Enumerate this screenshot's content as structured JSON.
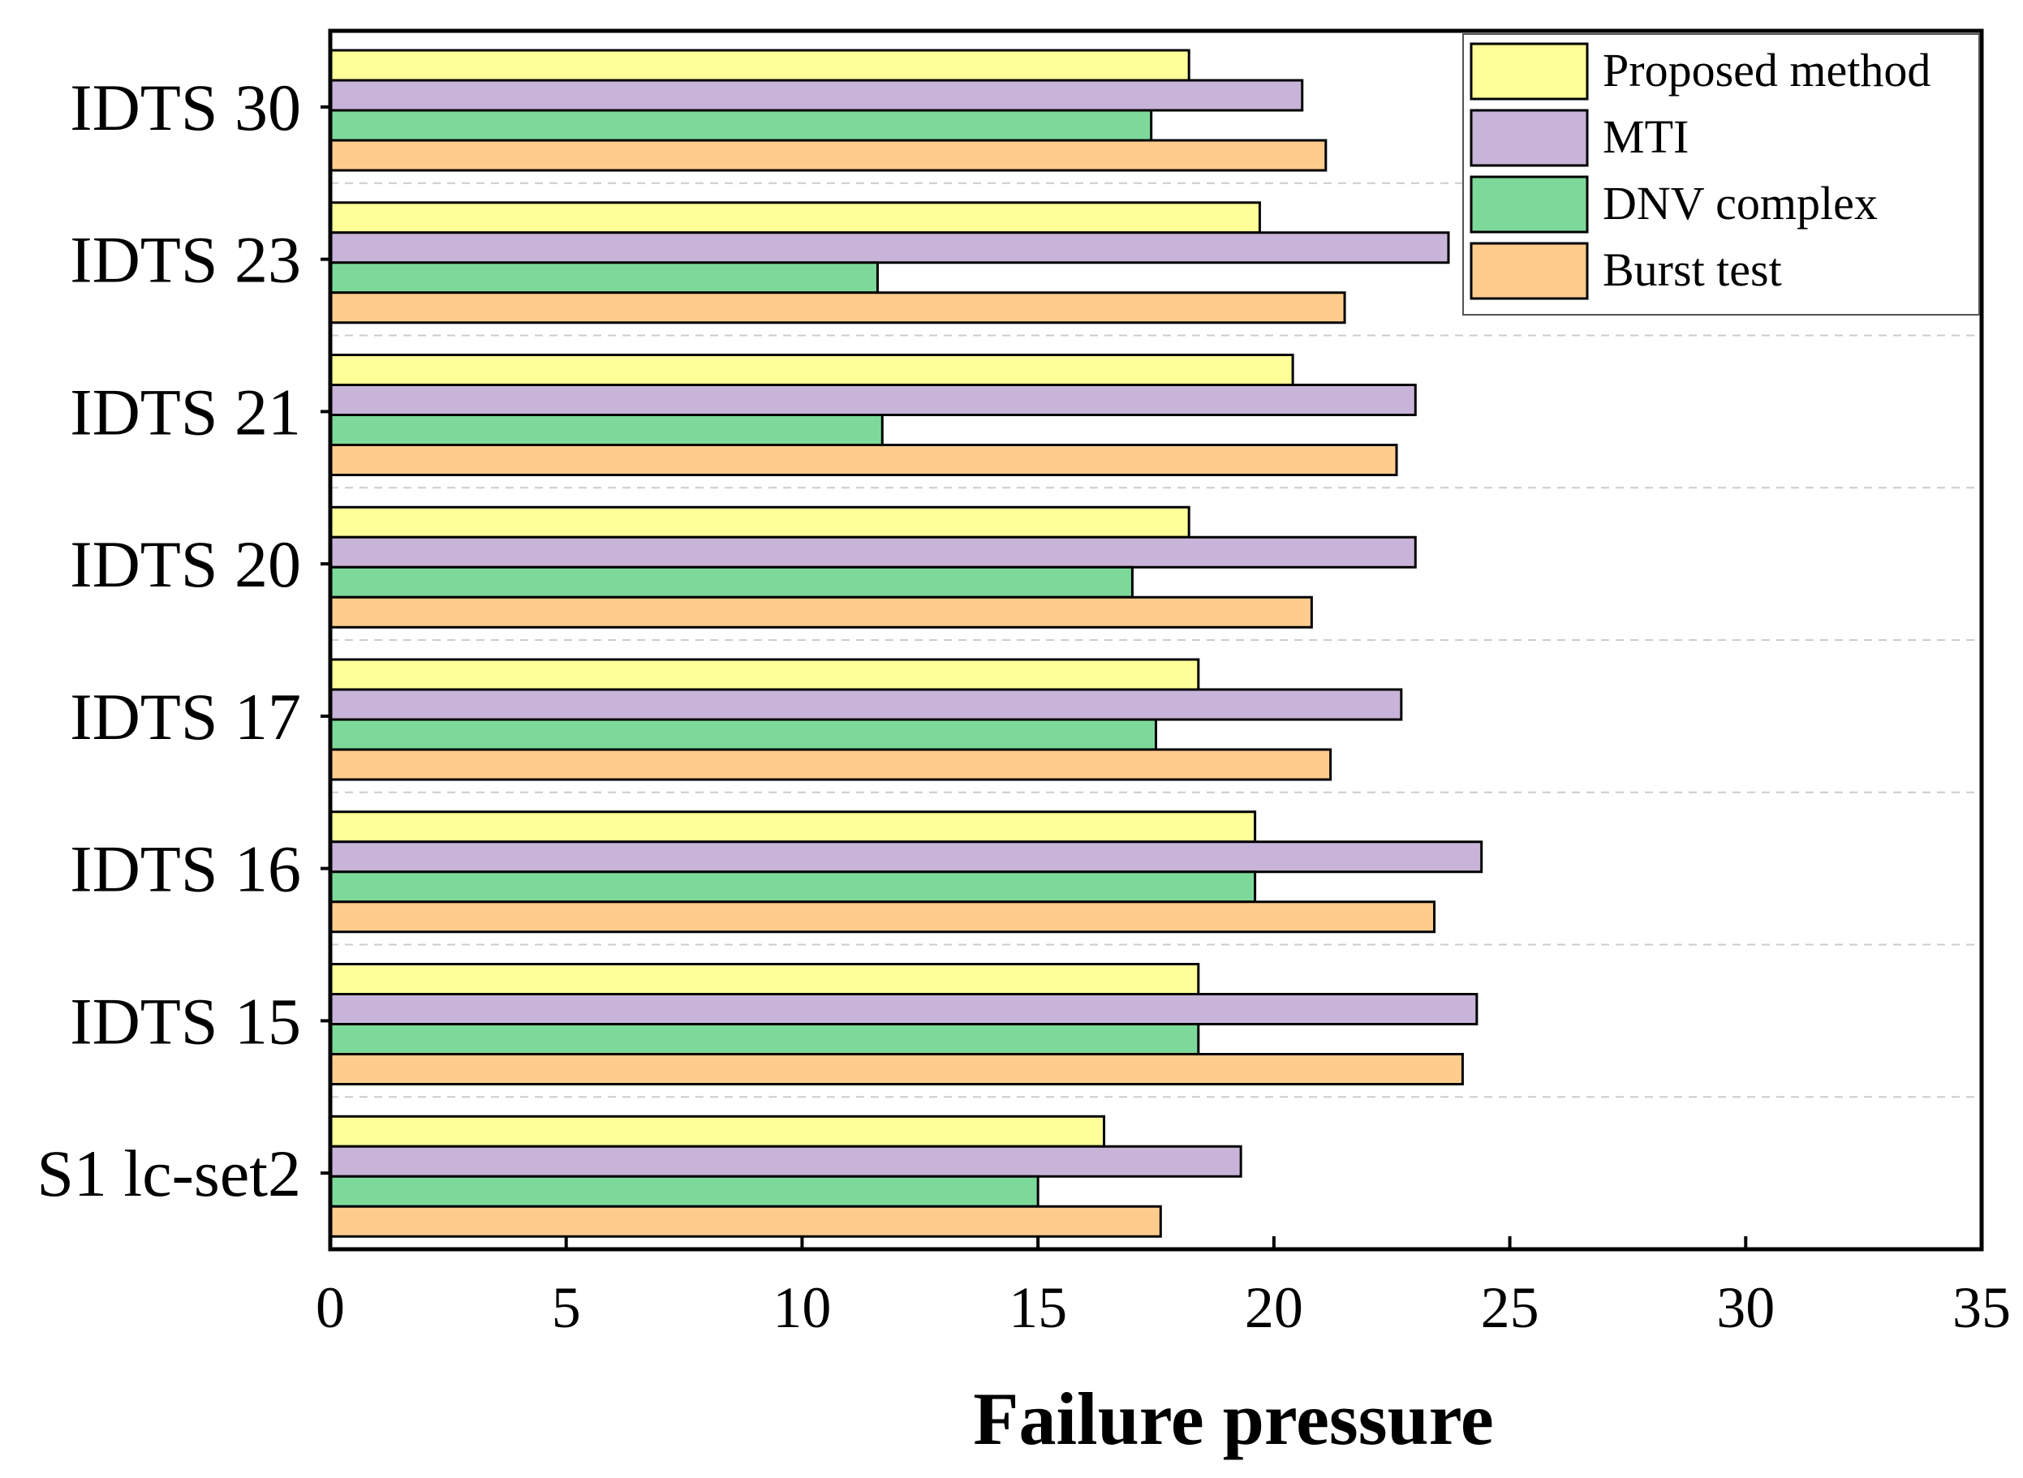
{
  "chart_data": {
    "type": "bar",
    "orientation": "horizontal",
    "categories": [
      "IDTS 30",
      "IDTS 23",
      "IDTS 21",
      "IDTS 20",
      "IDTS 17",
      "IDTS 16",
      "IDTS 15",
      "S1 lc-set2"
    ],
    "series": [
      {
        "name": "Proposed method",
        "color": "#FFFF99",
        "values": [
          18.2,
          19.7,
          20.4,
          18.2,
          18.4,
          19.6,
          18.4,
          16.4
        ]
      },
      {
        "name": "MTI",
        "color": "#C8B4D8",
        "values": [
          20.6,
          23.7,
          23.0,
          23.0,
          22.7,
          24.4,
          24.3,
          19.3
        ]
      },
      {
        "name": "DNV complex",
        "color": "#7DD99A",
        "values": [
          17.4,
          11.6,
          11.7,
          17.0,
          17.5,
          19.6,
          18.4,
          15.0
        ]
      },
      {
        "name": "Burst test",
        "color": "#FFCC8E",
        "values": [
          21.1,
          21.5,
          22.6,
          20.8,
          21.2,
          23.4,
          24.0,
          17.6
        ]
      }
    ],
    "xlabel": "Failure pressure",
    "ylabel": "",
    "title": "",
    "xlim": [
      0,
      35
    ],
    "xticks": [
      "0",
      "5",
      "10",
      "15",
      "20",
      "25",
      "30",
      "35"
    ],
    "grid": "horizontal dashed",
    "legend_position": "top-right"
  }
}
